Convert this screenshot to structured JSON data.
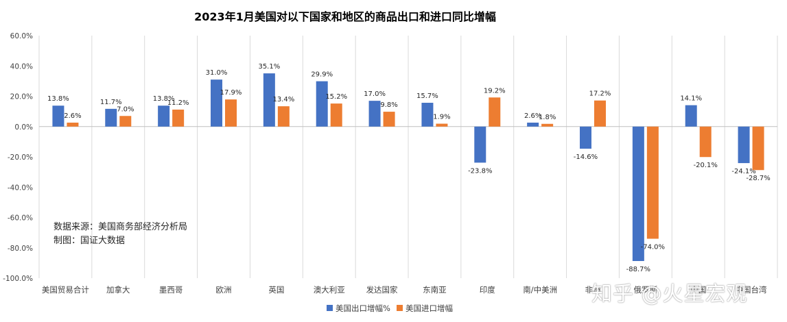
{
  "chart_data": {
    "type": "bar",
    "title": "2023年1月美国对以下国家和地区的商品出口和进口同比增幅",
    "categories": [
      "美国贸易合计",
      "加拿大",
      "墨西哥",
      "欧洲",
      "英国",
      "澳大利亚",
      "发达国家",
      "东南亚",
      "印度",
      "南/中美洲",
      "非洲",
      "俄罗斯",
      "中国",
      "中国台湾"
    ],
    "series": [
      {
        "name": "美国出口增幅%",
        "color": "#4472C4",
        "values": [
          13.8,
          11.7,
          13.8,
          31.0,
          35.1,
          29.9,
          17.0,
          15.7,
          -23.8,
          2.6,
          -14.6,
          -88.7,
          14.1,
          -24.1
        ]
      },
      {
        "name": "美国进口增幅",
        "color": "#ED7D31",
        "values": [
          2.6,
          7.0,
          11.2,
          17.9,
          13.4,
          15.2,
          9.8,
          1.9,
          19.2,
          1.8,
          17.2,
          -74.0,
          -20.1,
          -28.7
        ]
      }
    ],
    "ylim": [
      -100,
      60
    ],
    "yticks": [
      60,
      40,
      20,
      0,
      -20,
      -40,
      -60,
      -80,
      -100
    ],
    "ytick_labels": [
      "60.0%",
      "40.0%",
      "20.0%",
      "0.0%",
      "-20.0%",
      "-40.0%",
      "-60.0%",
      "-80.0%",
      "-100.0%"
    ],
    "grid": "vertical-category-dividers",
    "legend": "bottom-center"
  },
  "annotations": {
    "source": "数据来源：美国商务部经济分析局",
    "credit": "制图：国证大数据"
  },
  "watermark": "知乎 @火星宏观"
}
